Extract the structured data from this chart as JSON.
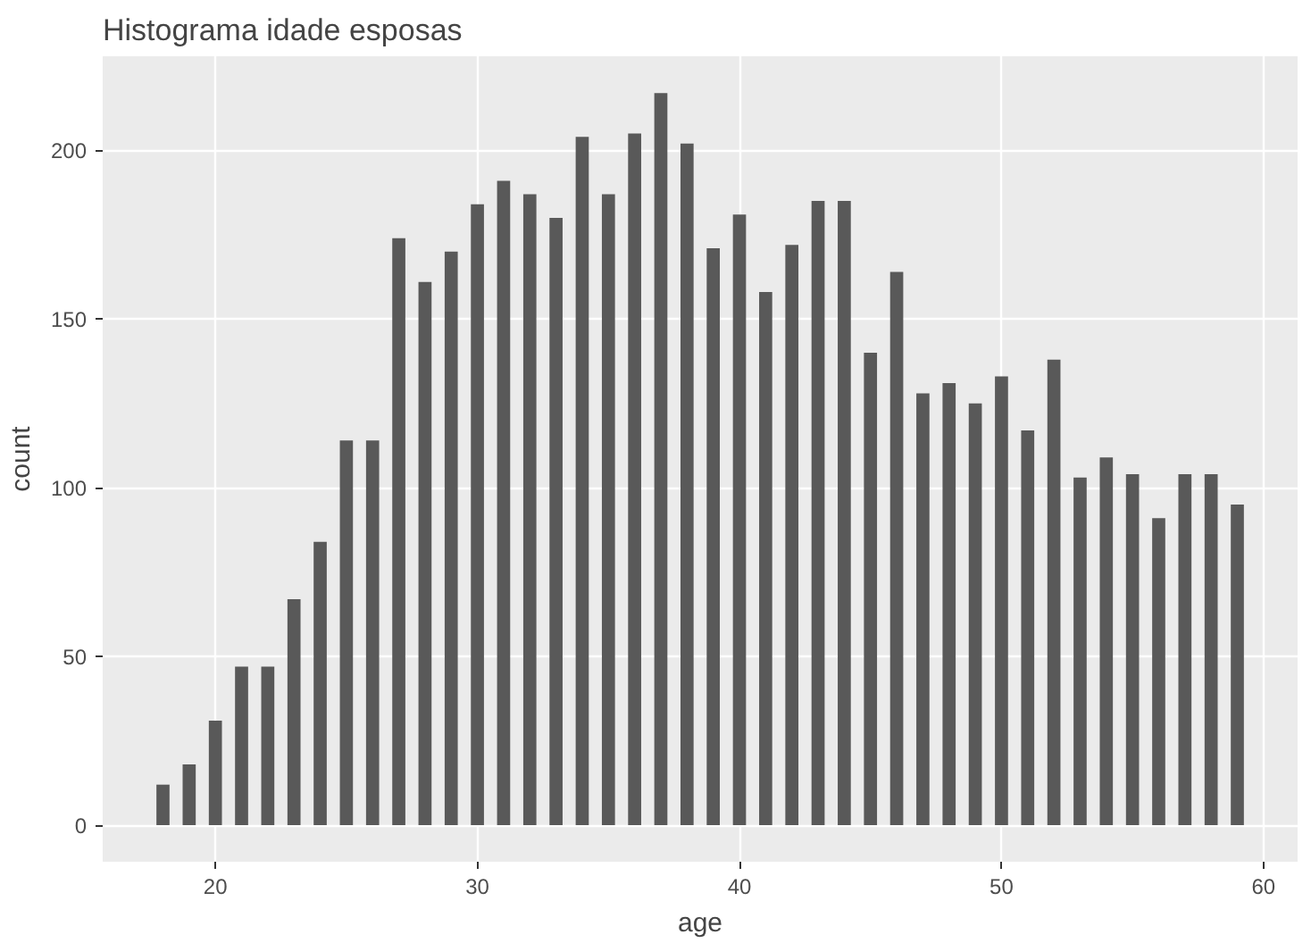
{
  "chart_data": {
    "type": "bar",
    "title": "Histograma idade esposas",
    "xlabel": "age",
    "ylabel": "count",
    "x": [
      18,
      19,
      20,
      21,
      22,
      23,
      24,
      25,
      26,
      27,
      28,
      29,
      30,
      31,
      32,
      33,
      34,
      35,
      36,
      37,
      38,
      39,
      40,
      41,
      42,
      43,
      44,
      45,
      46,
      47,
      48,
      49,
      50,
      51,
      52,
      53,
      54,
      55,
      56,
      57,
      58,
      59
    ],
    "values": [
      12,
      18,
      31,
      47,
      47,
      67,
      84,
      114,
      114,
      174,
      161,
      170,
      184,
      191,
      187,
      180,
      204,
      187,
      205,
      217,
      202,
      171,
      181,
      158,
      172,
      185,
      185,
      140,
      164,
      128,
      131,
      125,
      133,
      117,
      138,
      103,
      109,
      104,
      91,
      104,
      104,
      95
    ],
    "color": "#595959",
    "xlim": [
      15.7,
      61.3
    ],
    "ylim": [
      -10.85,
      227.9
    ],
    "xticks": [
      20,
      30,
      40,
      50,
      60
    ],
    "yticks": [
      0,
      50,
      100,
      150,
      200
    ],
    "grid": true
  }
}
